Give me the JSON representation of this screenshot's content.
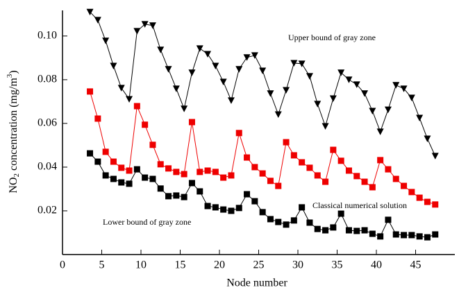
{
  "chart_data": {
    "type": "line",
    "x_label": "Node number",
    "y_label": [
      "NO",
      "2",
      " concentration (mg/m",
      "3",
      ")"
    ],
    "x": [
      3.5,
      4.5,
      5.5,
      6.5,
      7.5,
      8.5,
      9.5,
      10.5,
      11.5,
      12.5,
      13.5,
      14.5,
      15.5,
      16.5,
      17.5,
      18.5,
      19.5,
      20.5,
      21.5,
      22.5,
      23.5,
      24.5,
      25.5,
      26.5,
      27.5,
      28.5,
      29.5,
      30.5,
      31.5,
      32.5,
      33.5,
      34.5,
      35.5,
      36.5,
      37.5,
      38.5,
      39.5,
      40.5,
      41.5,
      42.5,
      43.5,
      44.5,
      45.5,
      46.5,
      47.5
    ],
    "series": [
      {
        "name": "Upper bound of gray zone",
        "color": "#000000",
        "marker": "triangle-down",
        "values": [
          0.111,
          0.1073,
          0.0978,
          0.0863,
          0.0762,
          0.0711,
          0.1022,
          0.1054,
          0.1048,
          0.0937,
          0.0848,
          0.0759,
          0.0667,
          0.0832,
          0.0943,
          0.0917,
          0.0863,
          0.079,
          0.0705,
          0.0848,
          0.0902,
          0.0911,
          0.0841,
          0.0737,
          0.0641,
          0.0752,
          0.0876,
          0.0873,
          0.0816,
          0.0689,
          0.0587,
          0.0714,
          0.0832,
          0.08,
          0.0778,
          0.0737,
          0.0657,
          0.0562,
          0.0663,
          0.0775,
          0.0759,
          0.0717,
          0.0625,
          0.053,
          0.0451
        ]
      },
      {
        "name": "Classical numerical solution",
        "color": "#ee0000",
        "marker": "square",
        "values": [
          0.0746,
          0.0622,
          0.047,
          0.0425,
          0.0397,
          0.0384,
          0.0679,
          0.0594,
          0.0502,
          0.0413,
          0.0394,
          0.0378,
          0.0368,
          0.0606,
          0.0378,
          0.0384,
          0.0378,
          0.0352,
          0.0362,
          0.0556,
          0.0444,
          0.04,
          0.0371,
          0.0337,
          0.0314,
          0.0514,
          0.0454,
          0.0422,
          0.0397,
          0.0362,
          0.0333,
          0.0479,
          0.0429,
          0.0384,
          0.0359,
          0.0333,
          0.0308,
          0.0432,
          0.039,
          0.0346,
          0.0314,
          0.0286,
          0.026,
          0.0241,
          0.0229
        ]
      },
      {
        "name": "Lower bound of gray zone",
        "color": "#000000",
        "marker": "square",
        "values": [
          0.0463,
          0.0425,
          0.0362,
          0.0346,
          0.033,
          0.0324,
          0.039,
          0.0352,
          0.0346,
          0.0302,
          0.0267,
          0.027,
          0.0263,
          0.0327,
          0.0289,
          0.0222,
          0.0216,
          0.0206,
          0.02,
          0.0213,
          0.0276,
          0.0244,
          0.0194,
          0.0162,
          0.0149,
          0.0137,
          0.0156,
          0.0216,
          0.0146,
          0.0117,
          0.0111,
          0.0124,
          0.0187,
          0.0111,
          0.0108,
          0.0111,
          0.0095,
          0.0083,
          0.0159,
          0.0092,
          0.0089,
          0.0089,
          0.0083,
          0.0079,
          0.0092
        ]
      }
    ],
    "xlim": [
      0,
      50
    ],
    "xticks": [
      0,
      5,
      10,
      15,
      20,
      25,
      30,
      35,
      40,
      45
    ],
    "ylim": [
      0,
      0.1117
    ],
    "yticks": [
      0.02,
      0.04,
      0.06,
      {
        "value": 0.1,
        "label": "0.10"
      },
      0.08
    ],
    "grid": false
  }
}
